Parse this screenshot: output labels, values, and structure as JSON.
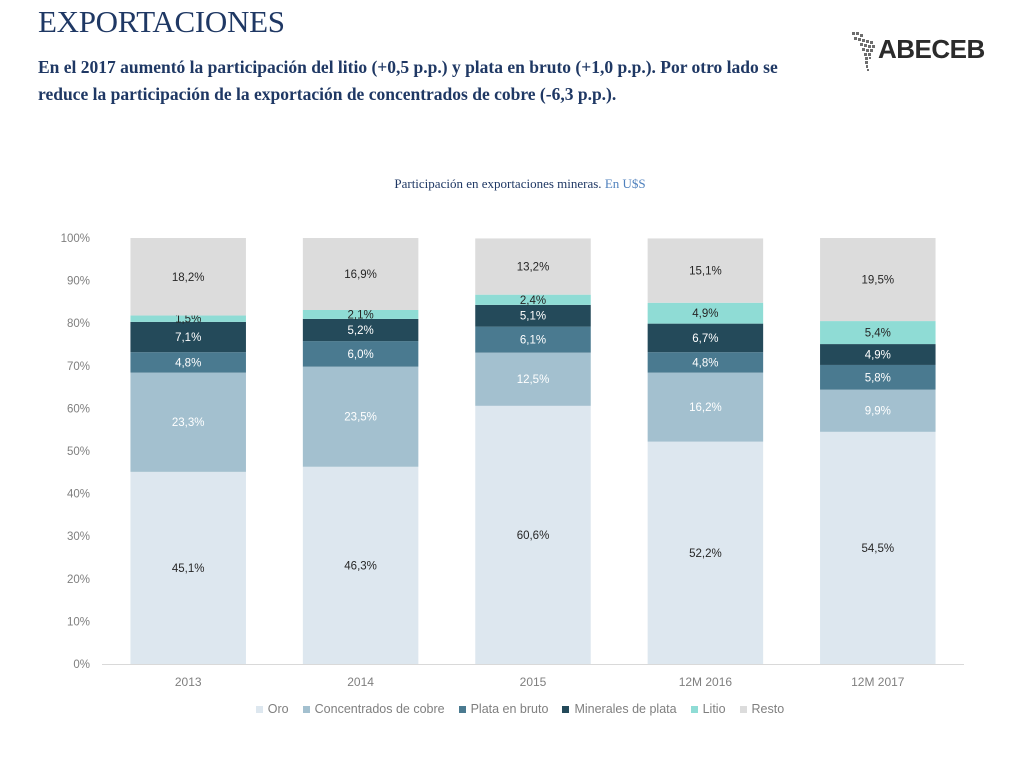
{
  "header": {
    "title": "EXPORTACIONES",
    "subtitle": "En el 2017 aumentó la participación del litio (+0,5 p.p.) y plata en bruto (+1,0 p.p.). Por otro lado se reduce la participación de la exportación de concentrados de cobre (-6,3 p.p.).",
    "logo_text": "ABECEB"
  },
  "chart_data": {
    "type": "bar",
    "stacked": true,
    "percent": true,
    "title": "Participación en exportaciones mineras.",
    "title_unit": "En U$S",
    "categories": [
      "2013",
      "2014",
      "2015",
      "12M 2016",
      "12M 2017"
    ],
    "y_ticks": [
      "0%",
      "10%",
      "20%",
      "30%",
      "40%",
      "50%",
      "60%",
      "70%",
      "80%",
      "90%",
      "100%"
    ],
    "ylim": [
      0,
      100
    ],
    "legend_position": "bottom",
    "series": [
      {
        "name": "Oro",
        "color": "#dde7ef",
        "label_color": "#262626",
        "values": [
          45.1,
          46.3,
          60.6,
          52.2,
          54.5
        ],
        "labels": [
          "45,1%",
          "46,3%",
          "60,6%",
          "52,2%",
          "54,5%"
        ]
      },
      {
        "name": "Concentrados de cobre",
        "color": "#a3c0cf",
        "label_color": "#ffffff",
        "values": [
          23.3,
          23.5,
          12.5,
          16.2,
          9.9
        ],
        "labels": [
          "23,3%",
          "23,5%",
          "12,5%",
          "16,2%",
          "9,9%"
        ]
      },
      {
        "name": "Plata en bruto",
        "color": "#4a7a90",
        "label_color": "#ffffff",
        "values": [
          4.8,
          6.0,
          6.1,
          4.8,
          5.8
        ],
        "labels": [
          "4,8%",
          "6,0%",
          "6,1%",
          "4,8%",
          "5,8%"
        ]
      },
      {
        "name": "Minerales de plata",
        "color": "#244a5a",
        "label_color": "#ffffff",
        "values": [
          7.1,
          5.2,
          5.1,
          6.7,
          4.9
        ],
        "labels": [
          "7,1%",
          "5,2%",
          "5,1%",
          "6,7%",
          "4,9%"
        ]
      },
      {
        "name": "Litio",
        "color": "#8fdcd5",
        "label_color": "#262626",
        "values": [
          1.5,
          2.1,
          2.4,
          4.9,
          5.4
        ],
        "labels": [
          "1,5%",
          "2,1%",
          "2,4%",
          "4,9%",
          "5,4%"
        ]
      },
      {
        "name": "Resto",
        "color": "#dcdcdc",
        "label_color": "#262626",
        "values": [
          18.2,
          16.9,
          13.2,
          15.1,
          19.5
        ],
        "labels": [
          "18,2%",
          "16,9%",
          "13,2%",
          "15,1%",
          "19,5%"
        ]
      }
    ]
  }
}
